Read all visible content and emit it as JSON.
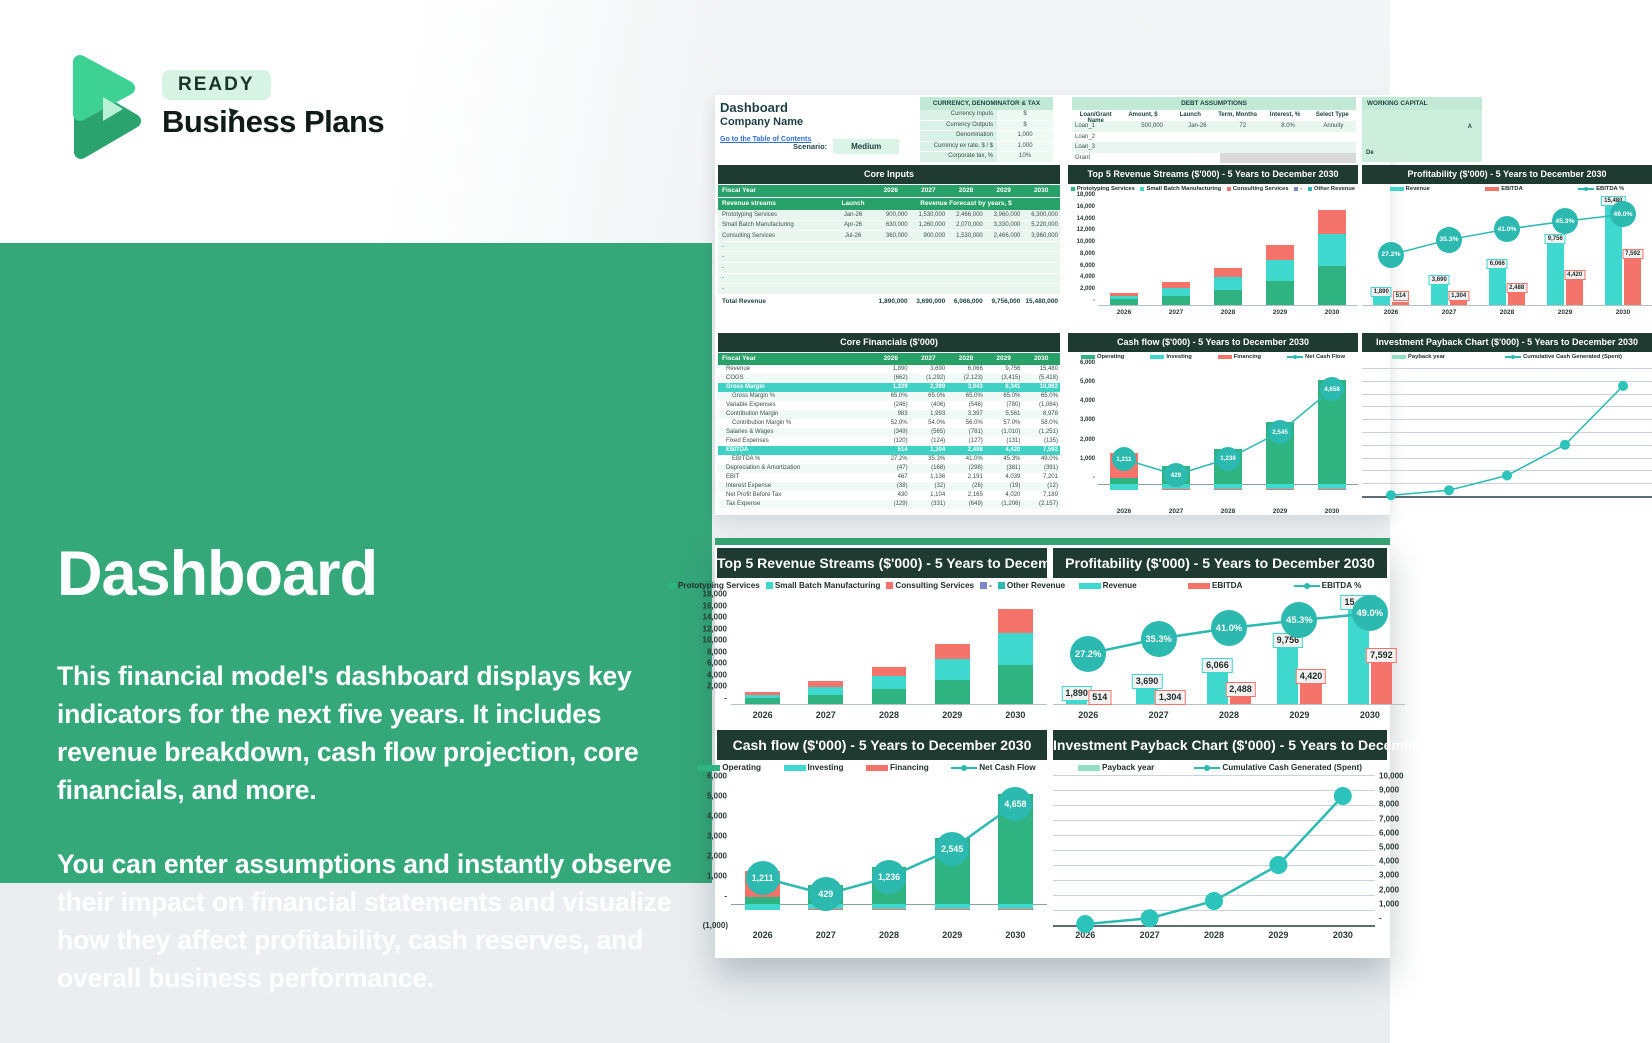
{
  "brand": {
    "badge": "READY",
    "name": "Business Plans"
  },
  "hero": {
    "title": "Dashboard",
    "p1": "This financial model's dashboard displays key indicators for the next five years. It includes revenue breakdown, cash flow projection, core financials, and more.",
    "p2": "You can enter assumptions and instantly observe their impact on financial statements and visualize how they affect profitability, cash reserves, and overall business performance."
  },
  "colors": {
    "accent_green": "#35a87a",
    "excel_green": "#28a169",
    "dark_header": "#1f3a31",
    "bar_green": "#2eb381",
    "bar_cyan": "#3fd8cf",
    "bar_coral": "#f4746b",
    "line_teal": "#2cb9b0",
    "payback_mint": "#93dfc2",
    "other_slate": "#7b87c9"
  },
  "dashboard": {
    "header": {
      "title": "Dashboard",
      "company": "Company Name",
      "toc": "Go to the Table of Contents",
      "scenario_label": "Scenario:",
      "scenario_value": "Medium"
    },
    "currency": {
      "title": "CURRENCY, DENOMINATOR & TAX",
      "rows": [
        {
          "label": "Currency Inputs",
          "value": "$"
        },
        {
          "label": "Currency Outputs",
          "value": "$"
        },
        {
          "label": "Denomination",
          "value": "1,000"
        },
        {
          "label": "Currency ex rate, $ / $",
          "value": "1.000"
        },
        {
          "label": "Corporate tax, %",
          "value": "10%"
        }
      ]
    },
    "debt": {
      "title": "DEBT ASSUMPTIONS",
      "headers": [
        "Loan/Grant Name",
        "Amount, $",
        "Launch",
        "Term, Months",
        "Interest, %",
        "Select Type"
      ],
      "rows": [
        {
          "c": [
            "Loan_1",
            "500,000",
            "Jan-26",
            "72",
            "8.0%",
            "Annuity"
          ],
          "g": ""
        },
        {
          "c": [
            "Loan_2",
            "",
            "",
            "",
            "",
            ""
          ],
          "g": ""
        },
        {
          "c": [
            "Loan_3",
            "",
            "",
            "",
            "",
            ""
          ],
          "g": ""
        },
        {
          "c": [
            "Grant",
            "",
            "",
            "",
            "",
            ""
          ],
          "g": "y"
        }
      ]
    },
    "working": {
      "title": "WORKING CAPITAL",
      "row_a": "A",
      "row_b": "De"
    },
    "core_inputs": {
      "title": "Core Inputs",
      "fiscal": "Fiscal Year",
      "years": [
        "2026",
        "2027",
        "2028",
        "2029",
        "2030"
      ],
      "streams_header": "Revenue streams",
      "launch_header": "Launch",
      "forecast_header": "Revenue Forecast by years, $",
      "rows": [
        [
          "Prototyping Services",
          "Jan-26",
          "900,000",
          "1,530,000",
          "2,466,000",
          "3,960,000",
          "6,300,000"
        ],
        [
          "Small Batch Manufacturing",
          "Apr-26",
          "630,000",
          "1,260,000",
          "2,070,000",
          "3,330,000",
          "5,220,000"
        ],
        [
          "Consulting Services",
          "Jul-26",
          "360,000",
          "900,000",
          "1,530,000",
          "2,466,000",
          "3,960,000"
        ],
        [
          "-",
          "",
          "",
          "",
          "",
          "",
          ""
        ],
        [
          "-",
          "",
          "",
          "",
          "",
          "",
          ""
        ],
        [
          "-",
          "",
          "",
          "",
          "",
          "",
          ""
        ],
        [
          "-",
          "",
          "",
          "",
          "",
          "",
          ""
        ],
        [
          "-",
          "",
          "",
          "",
          "",
          "",
          ""
        ]
      ],
      "total_label": "Total Revenue",
      "totals": [
        "1,890,000",
        "3,690,000",
        "6,066,000",
        "9,756,000",
        "15,480,000"
      ]
    },
    "core_financials": {
      "title": "Core Financials ($'000)",
      "fiscal": "Fiscal Year",
      "years": [
        "2026",
        "2027",
        "2028",
        "2029",
        "2030"
      ],
      "rows": [
        {
          "label": "Revenue",
          "cls": "",
          "vals": [
            "1,890",
            "3,690",
            "6,066",
            "9,756",
            "15,480"
          ]
        },
        {
          "label": "COGS",
          "cls": "",
          "vals": [
            "(662)",
            "(1,292)",
            "(2,123)",
            "(3,415)",
            "(5,418)"
          ]
        },
        {
          "label": "Gross Margin",
          "cls": "hl",
          "vals": [
            "1,229",
            "2,399",
            "3,943",
            "6,341",
            "10,062"
          ]
        },
        {
          "label": "Gross Margin %",
          "cls": "pct",
          "vals": [
            "65.0%",
            "65.0%",
            "65.0%",
            "65.0%",
            "65.0%"
          ]
        },
        {
          "label": "Variable Expenses",
          "cls": "",
          "vals": [
            "(246)",
            "(406)",
            "(546)",
            "(780)",
            "(1,084)"
          ]
        },
        {
          "label": "Contribution Margin",
          "cls": "",
          "vals": [
            "983",
            "1,993",
            "3,397",
            "5,561",
            "8,978"
          ]
        },
        {
          "label": "Contribution Margin %",
          "cls": "pct",
          "vals": [
            "52.0%",
            "54.0%",
            "56.0%",
            "57.0%",
            "58.0%"
          ]
        },
        {
          "label": "Salaries & Wages",
          "cls": "",
          "vals": [
            "(349)",
            "(565)",
            "(781)",
            "(1,010)",
            "(1,251)"
          ]
        },
        {
          "label": "Fixed Expenses",
          "cls": "",
          "vals": [
            "(120)",
            "(124)",
            "(127)",
            "(131)",
            "(135)"
          ]
        },
        {
          "label": "EBITDA",
          "cls": "hl",
          "vals": [
            "514",
            "1,304",
            "2,488",
            "4,420",
            "7,592"
          ]
        },
        {
          "label": "EBITDA %",
          "cls": "pct",
          "vals": [
            "27.2%",
            "35.3%",
            "41.0%",
            "45.3%",
            "49.0%"
          ]
        },
        {
          "label": "Depreciation & Amortization",
          "cls": "",
          "vals": [
            "(47)",
            "(168)",
            "(298)",
            "(381)",
            "(391)"
          ]
        },
        {
          "label": "EBIT",
          "cls": "",
          "vals": [
            "467",
            "1,136",
            "2,191",
            "4,039",
            "7,201"
          ]
        },
        {
          "label": "Interest Expense",
          "cls": "",
          "vals": [
            "(38)",
            "(32)",
            "(26)",
            "(19)",
            "(12)"
          ]
        },
        {
          "label": "Net Profit Before Tax",
          "cls": "",
          "vals": [
            "430",
            "1,104",
            "2,165",
            "4,020",
            "7,189"
          ]
        },
        {
          "label": "Tax Expense",
          "cls": "",
          "vals": [
            "(129)",
            "(331)",
            "(649)",
            "(1,206)",
            "(2,157)"
          ]
        }
      ]
    }
  },
  "charts": {
    "revenue": {
      "type": "bar",
      "title": "Top 5 Revenue Streams ($'000) - 5 Years to December 2030",
      "legend": [
        {
          "label": "Prototyping Services",
          "c": "green"
        },
        {
          "label": "Small Batch Manufacturing",
          "c": "cyan"
        },
        {
          "label": "Consulting Services",
          "c": "coral"
        },
        {
          "label": "-",
          "c": "slate"
        },
        {
          "label": "Other Revenue",
          "c": "teal"
        }
      ],
      "years": [
        "2026",
        "2027",
        "2028",
        "2029",
        "2030"
      ],
      "ticks": [
        "18,000",
        "16,000",
        "14,000",
        "12,000",
        "10,000",
        "8,000",
        "6,000",
        "4,000",
        "2,000",
        "-"
      ],
      "max": 18000,
      "series": [
        {
          "name": "Prototyping Services",
          "c": "green",
          "values": [
            900,
            1530,
            2466,
            3960,
            6300
          ]
        },
        {
          "name": "Small Batch Manufacturing",
          "c": "cyan",
          "values": [
            630,
            1260,
            2070,
            3330,
            5220
          ]
        },
        {
          "name": "Consulting Services",
          "c": "coral",
          "values": [
            360,
            900,
            1530,
            2466,
            3960
          ]
        }
      ]
    },
    "cashflow": {
      "type": "bar+line",
      "title": "Cash flow ($'000) - 5 Years to December 2030",
      "legend": [
        {
          "label": "Operating",
          "c": "green",
          "t": "bar"
        },
        {
          "label": "Investing",
          "c": "cyan",
          "t": "bar"
        },
        {
          "label": "Financing",
          "c": "coral",
          "t": "bar"
        },
        {
          "label": "Net Cash Flow",
          "c": "teal",
          "t": "line"
        }
      ],
      "years": [
        "2026",
        "2027",
        "2028",
        "2029",
        "2030"
      ],
      "ticks": [
        "6,000",
        "5,000",
        "4,000",
        "3,000",
        "2,000",
        "1,000",
        "-"
      ],
      "neg_tick": "(1,000)",
      "max": 6000,
      "min": -1000,
      "operating": [
        300,
        880,
        1700,
        3050,
        5130
      ],
      "financing_pos": [
        1200,
        0,
        0,
        0,
        0
      ],
      "investing_neg": [
        300,
        260,
        260,
        260,
        260
      ],
      "financing_neg": [
        0,
        60,
        60,
        60,
        60
      ],
      "net": [
        1211,
        429,
        1236,
        2545,
        4658
      ],
      "net_labels": [
        "1,211",
        "429",
        "1,236",
        "2,545",
        "4,658"
      ]
    },
    "profitability": {
      "type": "bar+line",
      "title": "Profitability ($'000) - 5 Years to December 2030",
      "legend": [
        {
          "label": "Revenue",
          "c": "cyan",
          "t": "bar"
        },
        {
          "label": "EBITDA",
          "c": "coral",
          "t": "bar"
        },
        {
          "label": "EBITDA %",
          "c": "teal",
          "t": "line"
        }
      ],
      "years": [
        "2026",
        "2027",
        "2028",
        "2029",
        "2030"
      ],
      "max": 16500,
      "revenue": [
        1890,
        3690,
        6066,
        9756,
        15480
      ],
      "revenue_labels": [
        "1,890",
        "3,690",
        "6,066",
        "9,756",
        "15,480"
      ],
      "ebitda": [
        514,
        1304,
        2488,
        4420,
        7592
      ],
      "ebitda_labels": [
        "514",
        "1,304",
        "2,488",
        "4,420",
        "7,592"
      ],
      "pct": [
        27.2,
        35.3,
        41.0,
        45.3,
        49.0
      ],
      "pct_labels": [
        "27.2%",
        "35.3%",
        "41.0%",
        "45.3%",
        "49.0%"
      ]
    },
    "payback": {
      "type": "line",
      "title": "Investment Payback Chart ($'000) - 5 Years to December 2030",
      "legend": [
        {
          "label": "Payback year",
          "c": "mint",
          "t": "bar"
        },
        {
          "label": "Cumulative Cash Generated (Spent)",
          "c": "teal",
          "t": "line"
        }
      ],
      "years": [
        "2026",
        "2027",
        "2028",
        "2029",
        "2030"
      ],
      "ticks_right": [
        "10,000",
        "9,000",
        "8,000",
        "7,000",
        "6,000",
        "5,000",
        "4,000",
        "3,000",
        "2,000",
        "1,000",
        "-"
      ],
      "max": 10000,
      "points": [
        60,
        450,
        1600,
        4000,
        8600
      ]
    }
  }
}
